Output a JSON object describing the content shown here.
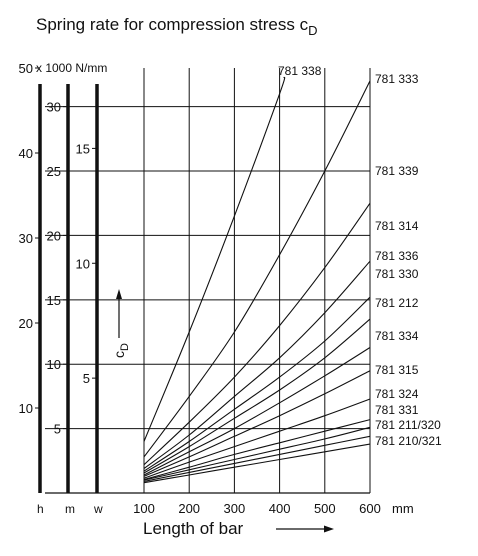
{
  "chart_data": {
    "type": "line",
    "title_main": "Spring rate for compression stress c",
    "title_sub": "D",
    "y_unit_label": "x 1000 N/mm",
    "xlabel": "Length of bar",
    "x_unit": "mm",
    "x_ticks": [
      "100",
      "200",
      "300",
      "400",
      "500",
      "600"
    ],
    "xlim": [
      100,
      600
    ],
    "scales": [
      {
        "key": "h",
        "label": "h",
        "ticks": [
          "10",
          "20",
          "30",
          "40",
          "50"
        ],
        "values": [
          10,
          20,
          30,
          40,
          50
        ],
        "max": 50
      },
      {
        "key": "m",
        "label": "m",
        "ticks": [
          "5",
          "10",
          "15",
          "20",
          "25",
          "30"
        ],
        "values": [
          5,
          10,
          15,
          20,
          25,
          30
        ],
        "max": 33
      },
      {
        "key": "w",
        "label": "w",
        "ticks": [
          "5",
          "10",
          "15"
        ],
        "values": [
          5,
          10,
          15
        ],
        "max": 18.5
      }
    ],
    "grid_m_values": [
      5,
      10,
      15,
      20,
      25,
      30
    ],
    "cd_marker_main": "c",
    "cd_marker_sub": "D",
    "series": [
      {
        "name": "781 338",
        "x": [
          100,
          200,
          300,
          400,
          410
        ],
        "y": [
          4.0,
          12.5,
          21.5,
          31.0,
          32.3
        ]
      },
      {
        "name": "781 333",
        "x": [
          100,
          200,
          300,
          400,
          500,
          600
        ],
        "y": [
          2.8,
          7.5,
          12.5,
          18.5,
          25.0,
          32.0
        ]
      },
      {
        "name": "781 339",
        "x": [
          100,
          200,
          300,
          400,
          500,
          600
        ],
        "y": [
          2.2,
          5.5,
          9.0,
          13.0,
          17.5,
          22.5
        ]
      },
      {
        "name": "781 314",
        "x": [
          100,
          200,
          300,
          400,
          500,
          600
        ],
        "y": [
          1.9,
          4.5,
          7.5,
          10.5,
          14.0,
          18.0
        ]
      },
      {
        "name": "781 336",
        "x": [
          100,
          200,
          300,
          400,
          500,
          600
        ],
        "y": [
          1.7,
          4.0,
          6.5,
          9.0,
          11.8,
          15.2
        ]
      },
      {
        "name": "781 330",
        "x": [
          100,
          200,
          300,
          400,
          500,
          600
        ],
        "y": [
          1.55,
          3.6,
          5.8,
          8.0,
          10.5,
          13.5
        ]
      },
      {
        "name": "781 212",
        "x": [
          100,
          200,
          300,
          400,
          500,
          600
        ],
        "y": [
          1.4,
          3.2,
          5.0,
          7.0,
          9.1,
          11.3
        ]
      },
      {
        "name": "781 334",
        "x": [
          100,
          200,
          300,
          400,
          500,
          600
        ],
        "y": [
          1.3,
          2.8,
          4.4,
          6.0,
          7.7,
          9.5
        ]
      },
      {
        "name": "781 315",
        "x": [
          100,
          200,
          300,
          400,
          500,
          600
        ],
        "y": [
          1.15,
          2.4,
          3.6,
          4.8,
          6.0,
          7.3
        ]
      },
      {
        "name": "781 324",
        "x": [
          100,
          200,
          300,
          400,
          500,
          600
        ],
        "y": [
          1.05,
          2.0,
          3.0,
          3.9,
          4.8,
          5.7
        ]
      },
      {
        "name": "781 331",
        "x": [
          100,
          200,
          300,
          400,
          500,
          600
        ],
        "y": [
          1.0,
          1.8,
          2.6,
          3.4,
          4.2,
          5.1
        ]
      },
      {
        "name": "781 211/320",
        "x": [
          100,
          200,
          300,
          400,
          500,
          600
        ],
        "y": [
          0.9,
          1.6,
          2.3,
          3.0,
          3.7,
          4.4
        ]
      },
      {
        "name": "781 210/321",
        "x": [
          100,
          200,
          300,
          400,
          500,
          600
        ],
        "y": [
          0.8,
          1.4,
          2.0,
          2.6,
          3.2,
          3.8
        ]
      }
    ]
  }
}
